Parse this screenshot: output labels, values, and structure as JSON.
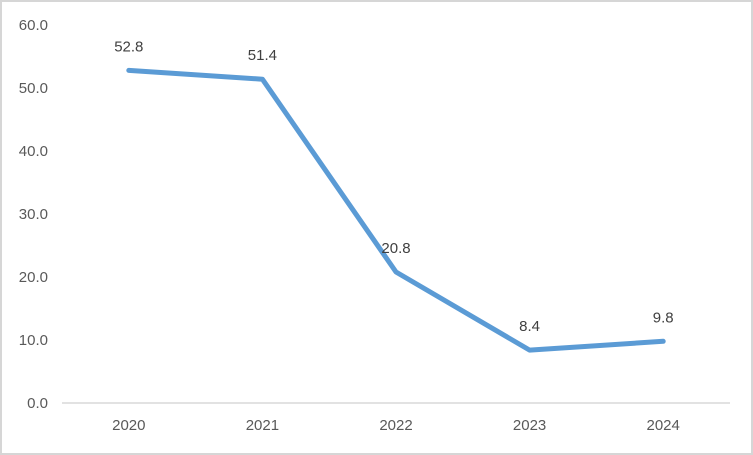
{
  "chart_data": {
    "type": "line",
    "title": "",
    "categories": [
      "2020",
      "2021",
      "2022",
      "2023",
      "2024"
    ],
    "series": [
      {
        "name": "series-1",
        "values": [
          52.8,
          51.4,
          20.8,
          8.4,
          9.8
        ]
      }
    ],
    "data_labels": [
      "52.8",
      "51.4",
      "20.8",
      "8.4",
      "9.8"
    ],
    "x_axis": {
      "labels": [
        "2020",
        "2021",
        "2022",
        "2023",
        "2024"
      ]
    },
    "y_axis": {
      "ticks": [
        "0.0",
        "10.0",
        "20.0",
        "30.0",
        "40.0",
        "50.0",
        "60.0"
      ],
      "tick_values": [
        0,
        10,
        20,
        30,
        40,
        50,
        60
      ],
      "min": 0,
      "max": 60
    },
    "grid": false,
    "legend": "none",
    "colors": {
      "line": "#5B9BD5",
      "axis_text": "#595959",
      "data_label_text": "#404040",
      "axis_line": "#D9D9D9",
      "chart_border": "#D6D6D6",
      "background": "#FFFFFF"
    }
  }
}
